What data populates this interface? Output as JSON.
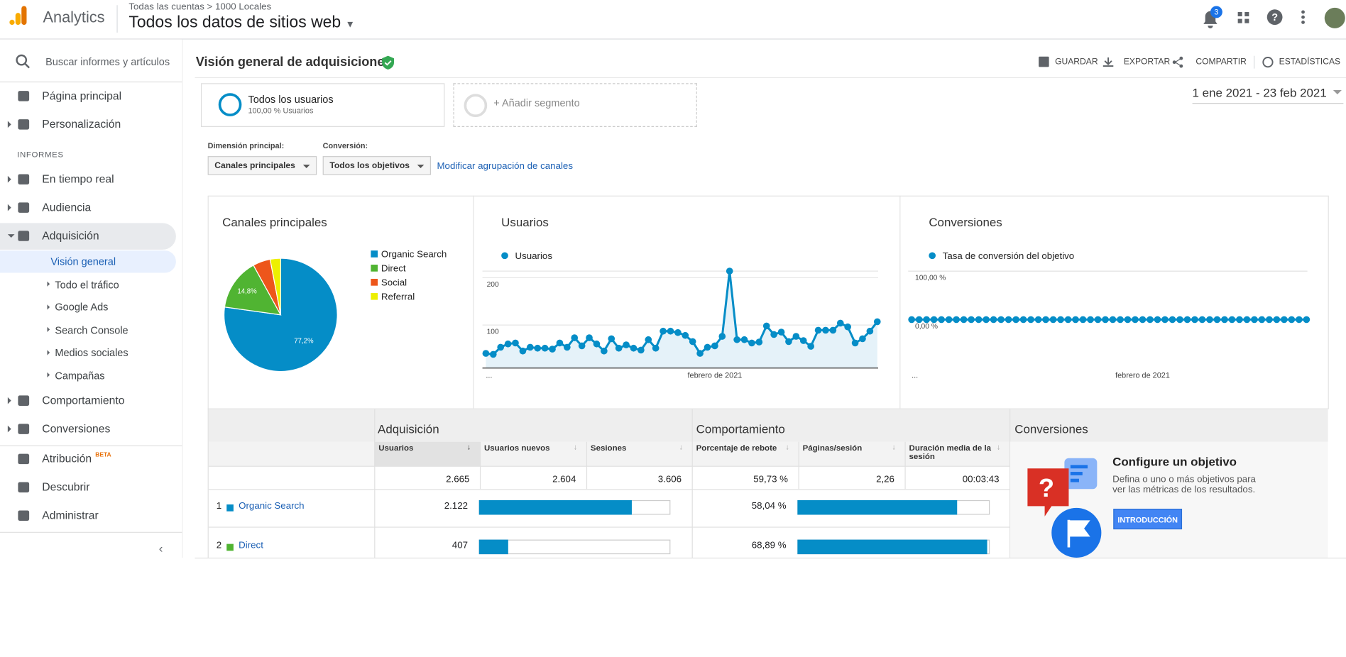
{
  "header": {
    "product": "Analytics",
    "breadcrumb": [
      "Todas las cuentas",
      "1000 Locales"
    ],
    "view": "Todos los datos de sitios web",
    "notifications": "3"
  },
  "sidebar": {
    "search": "Buscar informes y artículos",
    "top": [
      "Página principal",
      "Personalización"
    ],
    "section": "INFORMES",
    "reports": [
      "En tiempo real",
      "Audiencia",
      "Adquisición"
    ],
    "sub": [
      "Visión general",
      "Todo el tráfico",
      "Google Ads",
      "Search Console",
      "Medios sociales",
      "Campañas"
    ],
    "reports2": [
      "Comportamiento",
      "Conversiones"
    ],
    "bottom": [
      "Atribución",
      "Descubrir",
      "Administrar"
    ],
    "beta": "BETA"
  },
  "page": {
    "title": "Visión general de adquisiciones",
    "actions": [
      "GUARDAR",
      "EXPORTAR",
      "COMPARTIR",
      "ESTADÍSTICAS"
    ],
    "segment": "Todos los usuarios",
    "segment_sub": "100,00 % Usuarios",
    "add_segment": "+ Añadir segmento",
    "date_range": "1 ene 2021 - 23 feb 2021",
    "dimension_label": "Dimensión principal:",
    "dimension": "Canales principales",
    "conversion_label": "Conversión:",
    "conversion": "Todos los objetivos",
    "modify_link": "Modificar agrupación de canales"
  },
  "charts": [
    {
      "type": "pie",
      "title": "Canales principales",
      "categories": [
        "Organic Search",
        "Direct",
        "Social",
        "Referral"
      ],
      "colors": [
        "#058dc7",
        "#50b432",
        "#ed561b",
        "#edef00"
      ],
      "values": [
        77.2,
        14.8,
        5,
        3
      ],
      "value_labels": [
        "77,2%",
        "14,8%",
        null,
        null
      ]
    },
    {
      "type": "line",
      "title": "Usuarios",
      "categories": [
        "...",
        null,
        null,
        null,
        null,
        null,
        null,
        null,
        null,
        null,
        null,
        null,
        null,
        null,
        null,
        null,
        null,
        null,
        null,
        null,
        null,
        null,
        null,
        null,
        null,
        null,
        null,
        null,
        null,
        null,
        null,
        "febrero de 2021",
        null,
        null,
        null,
        null,
        null,
        null,
        null,
        null,
        null,
        null,
        null,
        null,
        null,
        null,
        null,
        null,
        null,
        null,
        null,
        null,
        null,
        null
      ],
      "series": [
        {
          "name": "Usuarios",
          "color": "#058dc7",
          "values": [
            40,
            38,
            53,
            60,
            62,
            45,
            53,
            51,
            51,
            49,
            62,
            53,
            73,
            56,
            73,
            60,
            45,
            71,
            51,
            58,
            51,
            47,
            69,
            51,
            87,
            87,
            84,
            78,
            65,
            40,
            53,
            56,
            76,
            214,
            69,
            69,
            62,
            64,
            98,
            80,
            85,
            65,
            76,
            67,
            55,
            89,
            89,
            89,
            104,
            96,
            62,
            71,
            87,
            107
          ]
        }
      ],
      "ylim": [
        9,
        214
      ],
      "yticks": [
        100,
        200
      ]
    },
    {
      "type": "line",
      "title": "Conversiones",
      "categories": [
        "...",
        null,
        null,
        null,
        null,
        null,
        null,
        null,
        null,
        null,
        null,
        null,
        null,
        null,
        null,
        null,
        null,
        null,
        null,
        null,
        null,
        null,
        null,
        null,
        null,
        null,
        null,
        null,
        null,
        null,
        null,
        "febrero de 2021",
        null,
        null,
        null,
        null,
        null,
        null,
        null,
        null,
        null,
        null,
        null,
        null,
        null,
        null,
        null,
        null,
        null,
        null,
        null,
        null,
        null,
        null
      ],
      "series": [
        {
          "name": "Tasa de conversión del objetivo",
          "color": "#058dc7",
          "values": [
            0,
            0,
            0,
            0,
            0,
            0,
            0,
            0,
            0,
            0,
            0,
            0,
            0,
            0,
            0,
            0,
            0,
            0,
            0,
            0,
            0,
            0,
            0,
            0,
            0,
            0,
            0,
            0,
            0,
            0,
            0,
            0,
            0,
            0,
            0,
            0,
            0,
            0,
            0,
            0,
            0,
            0,
            0,
            0,
            0,
            0,
            0,
            0,
            0,
            0,
            0,
            0,
            0,
            0
          ]
        }
      ],
      "ylim": [
        -100,
        100
      ],
      "yticks": [
        {
          "value": 0,
          "label": "0,00 %"
        },
        {
          "value": 100,
          "label": "100,00 %"
        }
      ]
    }
  ],
  "table": {
    "groups": [
      "Adquisición",
      "Comportamiento",
      "Conversiones"
    ],
    "columns": [
      "Usuarios",
      "Usuarios nuevos",
      "Sesiones",
      "Porcentaje de rebote",
      "Páginas/sesión",
      "Duración media de la sesión"
    ],
    "totals": [
      {
        "value": 2665,
        "label": "2.665"
      },
      "2.604",
      "3.606",
      "59,73 %",
      "2,26",
      "00:03:43"
    ],
    "rows": [
      {
        "rank": "1",
        "name": "Organic Search",
        "color": "#058dc7",
        "users": {
          "value": 2122,
          "label": "2.122"
        },
        "bounce": {
          "value": 58.04,
          "label": "58,04 %"
        }
      },
      {
        "rank": "2",
        "name": "Direct",
        "color": "#50b432",
        "users": {
          "value": 407,
          "label": "407"
        },
        "bounce": {
          "value": 68.89,
          "label": "68,89 %"
        }
      }
    ]
  },
  "goal": {
    "title": "Configure un objetivo",
    "text": "Defina o uno o más objetivos para ver las métricas de los resultados.",
    "button": "INTRODUCCIÓN"
  }
}
